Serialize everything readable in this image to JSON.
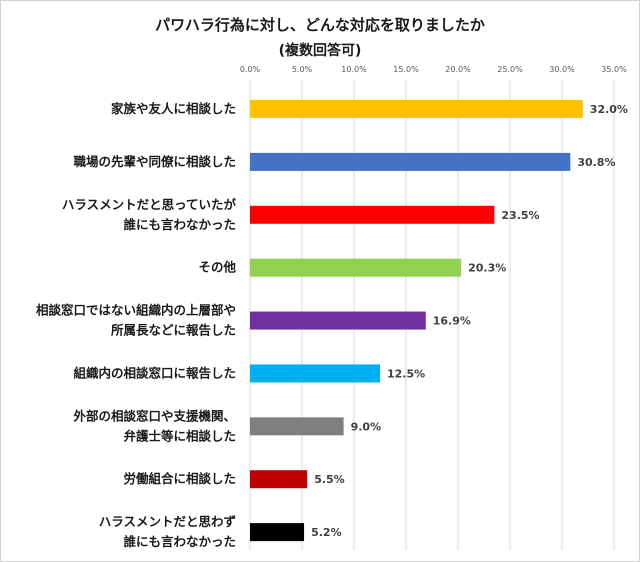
{
  "chart_data": {
    "type": "bar",
    "orientation": "horizontal",
    "title": "パワハラ行為に対し、どんな対応を取りましたか",
    "subtitle": "(複数回答可)",
    "xlim": [
      0,
      35
    ],
    "xticks": [
      "0.0%",
      "5.0%",
      "10.0%",
      "15.0%",
      "20.0%",
      "25.0%",
      "30.0%",
      "35.0%"
    ],
    "xtick_values": [
      0,
      5,
      10,
      15,
      20,
      25,
      30,
      35
    ],
    "gridlines": true,
    "categories": [
      [
        "家族や友人に相談した"
      ],
      [
        "職場の先輩や同僚に相談した"
      ],
      [
        "ハラスメントだと思っていたが",
        "誰にも言わなかった"
      ],
      [
        "その他"
      ],
      [
        "相談窓口ではない組織内の上層部や",
        "所属長などに報告した"
      ],
      [
        "組織内の相談窓口に報告した"
      ],
      [
        "外部の相談窓口や支援機関、",
        "弁護士等に相談した"
      ],
      [
        "労働組合に相談した"
      ],
      [
        "ハラスメントだと思わず",
        "誰にも言わなかった"
      ]
    ],
    "values": [
      32.0,
      30.8,
      23.5,
      20.3,
      16.9,
      12.5,
      9.0,
      5.5,
      5.2
    ],
    "value_labels": [
      "32.0%",
      "30.8%",
      "23.5%",
      "20.3%",
      "16.9%",
      "12.5%",
      "9.0%",
      "5.5%",
      "5.2%"
    ],
    "colors": [
      "#FFC000",
      "#4472C4",
      "#FF0000",
      "#92D050",
      "#7030A0",
      "#00B0F0",
      "#7F7F7F",
      "#C00000",
      "#000000"
    ]
  }
}
